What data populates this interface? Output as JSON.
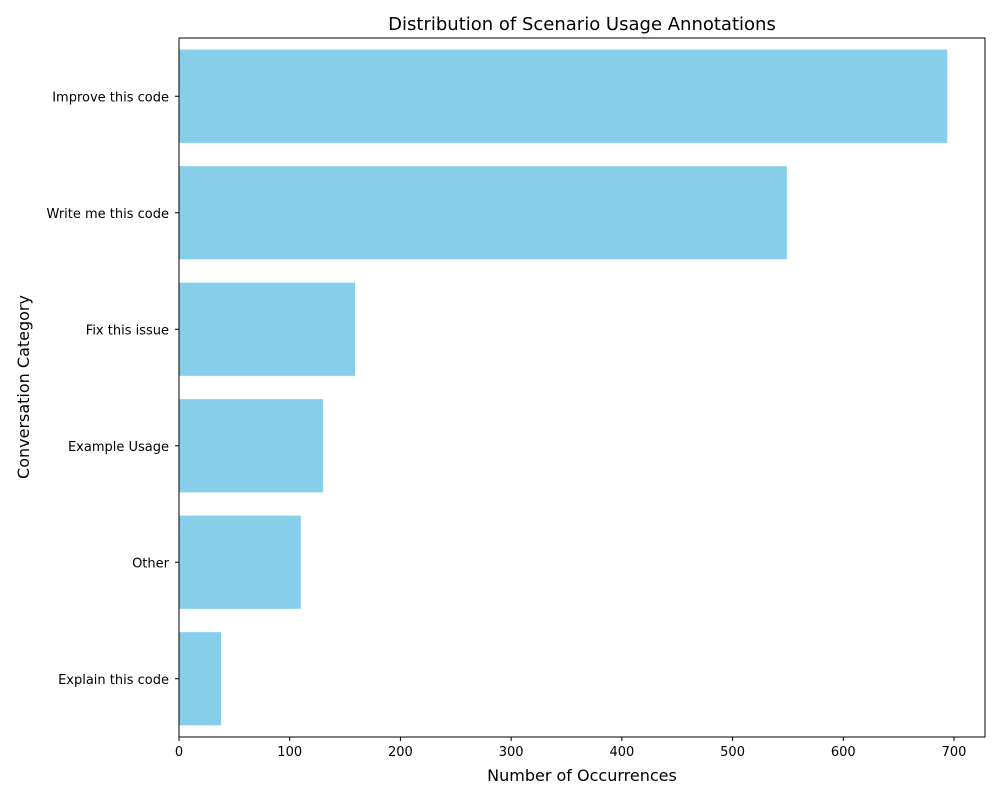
{
  "chart_data": {
    "type": "bar",
    "orientation": "horizontal",
    "title": "Distribution of Scenario Usage Annotations",
    "xlabel": "Number of Occurrences",
    "ylabel": "Conversation Category",
    "categories": [
      "Improve this code",
      "Write me this code",
      "Fix this issue",
      "Example Usage",
      "Other",
      "Explain this code"
    ],
    "values": [
      694,
      549,
      159,
      130,
      110,
      38
    ],
    "xlim": [
      0,
      728
    ],
    "xticks": [
      0,
      100,
      200,
      300,
      400,
      500,
      600,
      700
    ],
    "grid": false,
    "bar_color": "#87ceeb"
  }
}
